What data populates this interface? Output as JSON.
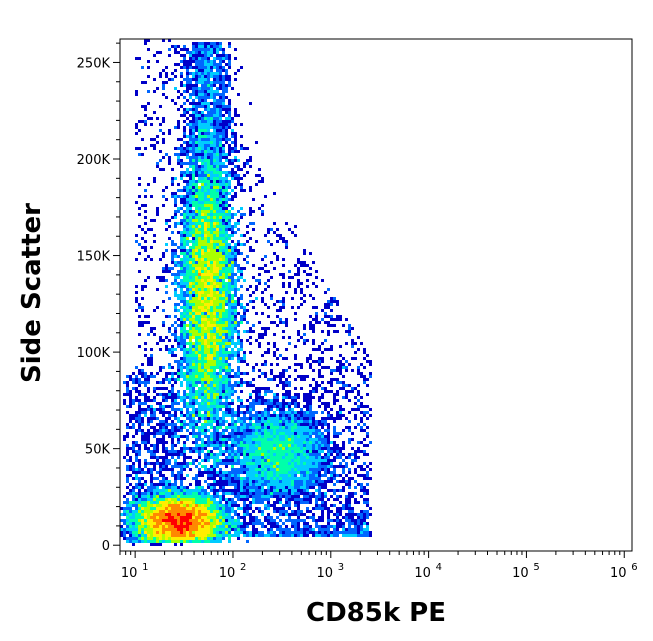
{
  "chart_data": {
    "type": "scatter",
    "style": "density-plot",
    "xlabel": "CD85k PE",
    "ylabel": "Side Scatter",
    "x_scale": "log",
    "xlim": [
      7,
      1200000
    ],
    "ylim": [
      -3000,
      262144
    ],
    "x_ticks": [
      {
        "base": "10",
        "exp": "1",
        "value": 10
      },
      {
        "base": "10",
        "exp": "2",
        "value": 100
      },
      {
        "base": "10",
        "exp": "3",
        "value": 1000
      },
      {
        "base": "10",
        "exp": "4",
        "value": 10000
      },
      {
        "base": "10",
        "exp": "5",
        "value": 100000
      },
      {
        "base": "10",
        "exp": "6",
        "value": 1000000
      }
    ],
    "y_ticks": [
      {
        "label": "0",
        "value": 0
      },
      {
        "label": "50K",
        "value": 50000
      },
      {
        "label": "100K",
        "value": 100000
      },
      {
        "label": "150K",
        "value": 150000
      },
      {
        "label": "200K",
        "value": 200000
      },
      {
        "label": "250K",
        "value": 250000
      }
    ],
    "populations": [
      {
        "name_hint": "low-x cluster",
        "x_center": 28,
        "y_center": 12000,
        "x_spread_decades": 0.22,
        "y_spread": 7000,
        "density_peak": "red"
      },
      {
        "name_hint": "granular cluster",
        "x_center": 55,
        "y_center": 125000,
        "x_spread_decades": 0.14,
        "y_spread": 35000,
        "density_peak": "yellow-green"
      },
      {
        "name_hint": "positive cluster",
        "x_center": 280,
        "y_center": 48000,
        "x_spread_decades": 0.25,
        "y_spread": 12000,
        "density_peak": "cyan"
      }
    ],
    "colormap": [
      "#0000c8",
      "#0066ff",
      "#00ccff",
      "#00ffaa",
      "#aaff00",
      "#ffee00",
      "#ff8800",
      "#ff0000"
    ],
    "grid": false
  }
}
